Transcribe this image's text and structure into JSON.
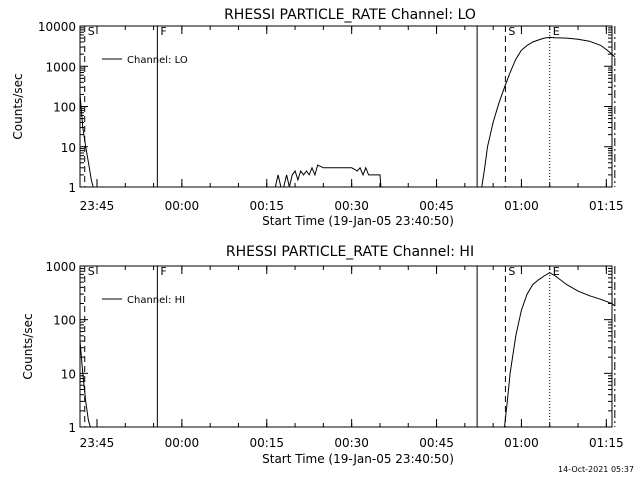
{
  "footer": {
    "timestamp": "14-Oct-2021 05:37"
  },
  "chart_data": [
    {
      "type": "line",
      "title": "RHESSI PARTICLE_RATE Channel: LO",
      "xlabel": "Start Time (19-Jan-05 23:40:50)",
      "ylabel": "Counts/sec",
      "y_scale": "log",
      "ylim": [
        1,
        10000
      ],
      "xlim_minutes_after_2340": [
        2,
        96
      ],
      "x_tick_labels": [
        "23:45",
        "00:00",
        "00:15",
        "00:30",
        "00:45",
        "01:00",
        "01:15"
      ],
      "y_tick_labels": [
        "1",
        "10",
        "100",
        "1000",
        "10000"
      ],
      "legend": {
        "label": "Channel: LO",
        "placement": "top-left"
      },
      "markers": [
        {
          "label": "S",
          "time": "23:42:50",
          "style": "dashed"
        },
        {
          "label": "F",
          "time": "23:55:40",
          "style": "solid"
        },
        {
          "label": "",
          "time": "00:52:10",
          "style": "solid"
        },
        {
          "label": "S",
          "time": "00:57:10",
          "style": "dashed"
        },
        {
          "label": "E",
          "time": "01:05:00",
          "style": "dotted"
        },
        {
          "label": "",
          "time": "01:16:30",
          "style": "dashdot"
        }
      ],
      "series": [
        {
          "name": "Channel: LO",
          "segments": [
            {
              "x": [
                "23:42:00",
                "23:42:30",
                "23:43:00",
                "23:43:30",
                "23:44:00",
                "23:44:20"
              ],
              "y": [
                200,
                30,
                10,
                4,
                1.5,
                1
              ]
            },
            {
              "x": [
                "00:16:30",
                "00:17:00",
                "00:17:30",
                "00:18:00",
                "00:18:30",
                "00:19:00",
                "00:19:30",
                "00:20:00",
                "00:20:30",
                "00:21:00",
                "00:21:30",
                "00:22:00",
                "00:22:30",
                "00:23:00",
                "00:23:30",
                "00:24:00",
                "00:25:00",
                "00:26:00",
                "00:27:00",
                "00:28:00",
                "00:29:00",
                "00:30:00",
                "00:31:00",
                "00:31:30",
                "00:32:00",
                "00:32:30",
                "00:33:00",
                "00:34:00",
                "00:35:00",
                "00:35:10"
              ],
              "y": [
                1,
                2,
                1,
                1,
                2,
                1,
                2,
                2.5,
                1.5,
                2.5,
                2,
                2.5,
                2,
                3,
                2,
                3.5,
                3,
                3,
                3,
                3,
                3,
                3,
                2.5,
                3,
                2,
                3,
                2,
                2,
                2,
                1
              ]
            },
            {
              "x": [
                "00:53:00",
                "00:53:30",
                "00:54:00",
                "00:55:00",
                "00:56:00",
                "00:57:00",
                "00:58:00",
                "00:59:00",
                "01:00:00",
                "01:01:00",
                "01:02:00",
                "01:03:00",
                "01:04:00",
                "01:05:00",
                "01:06:00",
                "01:08:00",
                "01:10:00",
                "01:12:00",
                "01:14:00",
                "01:15:00",
                "01:16:00",
                "01:16:30"
              ],
              "y": [
                1,
                3,
                10,
                40,
                120,
                300,
                700,
                1500,
                2500,
                3300,
                4000,
                4500,
                5000,
                5200,
                5100,
                5000,
                4700,
                4200,
                3300,
                2600,
                2000,
                1700
              ]
            }
          ]
        }
      ]
    },
    {
      "type": "line",
      "title": "RHESSI PARTICLE_RATE Channel: HI",
      "xlabel": "Start Time (19-Jan-05 23:40:50)",
      "ylabel": "Counts/sec",
      "y_scale": "log",
      "ylim": [
        1,
        1000
      ],
      "xlim_minutes_after_2340": [
        2,
        96
      ],
      "x_tick_labels": [
        "23:45",
        "00:00",
        "00:15",
        "00:30",
        "00:45",
        "01:00",
        "01:15"
      ],
      "y_tick_labels": [
        "1",
        "10",
        "100",
        "1000"
      ],
      "legend": {
        "label": "Channel: HI",
        "placement": "top-left"
      },
      "markers": [
        {
          "label": "S",
          "time": "23:42:50",
          "style": "dashed"
        },
        {
          "label": "F",
          "time": "23:55:40",
          "style": "solid"
        },
        {
          "label": "",
          "time": "00:52:10",
          "style": "solid"
        },
        {
          "label": "S",
          "time": "00:57:10",
          "style": "dashed"
        },
        {
          "label": "E",
          "time": "01:05:00",
          "style": "dotted"
        },
        {
          "label": "",
          "time": "01:16:30",
          "style": "dashdot"
        }
      ],
      "series": [
        {
          "name": "Channel: HI",
          "segments": [
            {
              "x": [
                "23:42:00",
                "23:42:30",
                "23:43:00",
                "23:43:30",
                "23:43:50"
              ],
              "y": [
                40,
                10,
                3,
                1.3,
                1
              ]
            },
            {
              "x": [
                "00:57:00",
                "00:57:30",
                "00:58:00",
                "00:59:00",
                "01:00:00",
                "01:01:00",
                "01:02:00",
                "01:03:00",
                "01:04:00",
                "01:05:00",
                "01:06:00",
                "01:08:00",
                "01:10:00",
                "01:12:00",
                "01:14:00",
                "01:16:00",
                "01:16:30"
              ],
              "y": [
                1,
                3,
                10,
                50,
                150,
                300,
                450,
                550,
                650,
                750,
                650,
                450,
                340,
                280,
                240,
                200,
                180
              ]
            }
          ]
        }
      ]
    }
  ]
}
